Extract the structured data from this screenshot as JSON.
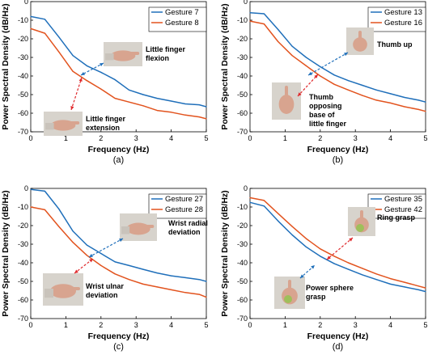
{
  "colors": {
    "series_a": "#1f6fba",
    "series_b": "#e2531e",
    "arrow_a": "#1f6fba",
    "arrow_b": "#e0282b",
    "photo_bg": "#d7d3cc",
    "hand": "#d8a48f"
  },
  "chart_data": [
    {
      "type": "line",
      "panel_label": "(a)",
      "xlabel": "Frequency (Hz)",
      "ylabel": "Power Spectral Density (dB/Hz)",
      "xlim": [
        0,
        5
      ],
      "ylim": [
        -70,
        0
      ],
      "xticks": [
        0,
        1,
        2,
        3,
        4,
        5
      ],
      "yticks": [
        0,
        -10,
        -20,
        -30,
        -40,
        -50,
        -60,
        -70
      ],
      "legend_position": "top-right",
      "x": [
        0,
        0.4,
        0.8,
        1.2,
        1.6,
        2.0,
        2.4,
        2.8,
        3.2,
        3.6,
        4.0,
        4.4,
        4.8,
        5.0
      ],
      "series": [
        {
          "name": "Gesture 7",
          "color": "series_a",
          "values": [
            -8,
            -9.5,
            -19,
            -29,
            -34.5,
            -38,
            -42,
            -47.5,
            -50,
            -52,
            -53.5,
            -55,
            -55.5,
            -56.5
          ]
        },
        {
          "name": "Gesture 8",
          "color": "series_b",
          "values": [
            -14.5,
            -17,
            -27,
            -37.5,
            -42.5,
            -47,
            -52,
            -54,
            -56,
            -58.5,
            -59.5,
            -61,
            -62,
            -63
          ]
        }
      ],
      "annotations": [
        {
          "text_lines": [
            "Little finger",
            "flexion"
          ],
          "arrow_color": "arrow_a",
          "points_to": "Gesture 7",
          "picture": "hand photo"
        },
        {
          "text_lines": [
            "Little finger",
            "extension"
          ],
          "arrow_color": "arrow_b",
          "points_to": "Gesture 8",
          "picture": "hand photo"
        }
      ]
    },
    {
      "type": "line",
      "panel_label": "(b)",
      "xlabel": "Frequency (Hz)",
      "ylabel": "Power Spectral Density (dB/Hz)",
      "xlim": [
        0,
        5
      ],
      "ylim": [
        -70,
        0
      ],
      "xticks": [
        0,
        1,
        2,
        3,
        4,
        5
      ],
      "yticks": [
        0,
        -10,
        -20,
        -30,
        -40,
        -50,
        -60,
        -70
      ],
      "legend_position": "top-right",
      "x": [
        0,
        0.4,
        0.8,
        1.2,
        1.6,
        2.0,
        2.4,
        2.8,
        3.2,
        3.6,
        4.0,
        4.4,
        4.8,
        5.0
      ],
      "series": [
        {
          "name": "Gesture 13",
          "color": "series_a",
          "values": [
            -6,
            -6.5,
            -15,
            -24,
            -30,
            -35,
            -39.5,
            -42.5,
            -45,
            -47.5,
            -49.5,
            -51.5,
            -53,
            -54
          ]
        },
        {
          "name": "Gesture 16",
          "color": "series_b",
          "values": [
            -10.5,
            -12,
            -21.5,
            -29,
            -34.5,
            -40,
            -44.5,
            -47.5,
            -50.5,
            -53,
            -54.5,
            -56.5,
            -58,
            -59
          ]
        }
      ],
      "annotations": [
        {
          "text_lines": [
            "Thumb up"
          ],
          "arrow_color": "arrow_a",
          "points_to": "Gesture 13",
          "picture": "hand photo"
        },
        {
          "text_lines": [
            "Thumb",
            "opposing",
            "base of",
            "little finger"
          ],
          "arrow_color": "arrow_b",
          "points_to": "Gesture 16",
          "picture": "hand photo"
        }
      ]
    },
    {
      "type": "line",
      "panel_label": "(c)",
      "xlabel": "Frequency (Hz)",
      "ylabel": "Power Spectral Density (dB/Hz)",
      "xlim": [
        0,
        5
      ],
      "ylim": [
        -70,
        0
      ],
      "xticks": [
        0,
        1,
        2,
        3,
        4,
        5
      ],
      "yticks": [
        0,
        -10,
        -20,
        -30,
        -40,
        -50,
        -60,
        -70
      ],
      "legend_position": "top-right",
      "x": [
        0,
        0.4,
        0.8,
        1.2,
        1.6,
        2.0,
        2.4,
        2.8,
        3.2,
        3.6,
        4.0,
        4.4,
        4.8,
        5.0
      ],
      "series": [
        {
          "name": "Gesture 27",
          "color": "series_a",
          "values": [
            -0.5,
            -1.5,
            -11,
            -23,
            -30.5,
            -35,
            -39.5,
            -41.5,
            -43.5,
            -45.5,
            -47,
            -48,
            -49,
            -50
          ]
        },
        {
          "name": "Gesture 28",
          "color": "series_b",
          "values": [
            -10,
            -11.5,
            -20.5,
            -29,
            -36,
            -41.5,
            -46,
            -49,
            -51.5,
            -53,
            -54.5,
            -56,
            -57,
            -58.5
          ]
        }
      ],
      "annotations": [
        {
          "text_lines": [
            "Wrist radial",
            "deviation"
          ],
          "arrow_color": "arrow_a",
          "points_to": "Gesture 27",
          "picture": "hand photo"
        },
        {
          "text_lines": [
            "Wrist ulnar",
            "deviation"
          ],
          "arrow_color": "arrow_b",
          "points_to": "Gesture 28",
          "picture": "hand photo"
        }
      ]
    },
    {
      "type": "line",
      "panel_label": "(d)",
      "xlabel": "Frequency (Hz)",
      "ylabel": "Power Spectral Density (dB/Hz)",
      "xlim": [
        0,
        5
      ],
      "ylim": [
        -70,
        0
      ],
      "xticks": [
        0,
        1,
        2,
        3,
        4,
        5
      ],
      "yticks": [
        0,
        -10,
        -20,
        -30,
        -40,
        -50,
        -60,
        -70
      ],
      "legend_position": "top-right",
      "x": [
        0,
        0.4,
        0.8,
        1.2,
        1.6,
        2.0,
        2.4,
        2.8,
        3.2,
        3.6,
        4.0,
        4.4,
        4.8,
        5.0
      ],
      "series": [
        {
          "name": "Gesture 35",
          "color": "series_a",
          "values": [
            -7.5,
            -9.5,
            -17.5,
            -25,
            -31.5,
            -36.5,
            -40.5,
            -43.5,
            -46.5,
            -49,
            -51.5,
            -53,
            -54.5,
            -55.5
          ]
        },
        {
          "name": "Gesture 42",
          "color": "series_b",
          "values": [
            -5,
            -6.5,
            -13.5,
            -20.5,
            -27,
            -32.5,
            -36.5,
            -40,
            -43,
            -46,
            -48.5,
            -50.5,
            -52.5,
            -53.5
          ]
        }
      ],
      "annotations": [
        {
          "text_lines": [
            "Ring grasp"
          ],
          "arrow_color": "arrow_b",
          "points_to": "Gesture 42",
          "picture": "hand photo"
        },
        {
          "text_lines": [
            "Power sphere",
            "grasp"
          ],
          "arrow_color": "arrow_a",
          "points_to": "Gesture 35",
          "picture": "hand photo"
        }
      ]
    }
  ]
}
